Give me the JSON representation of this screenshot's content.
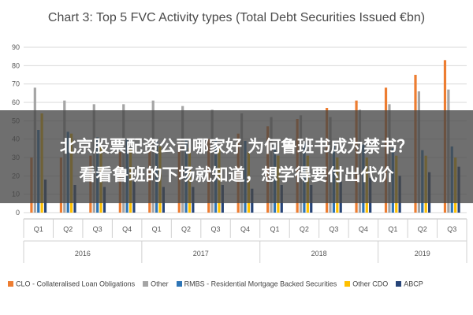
{
  "chart_data": {
    "type": "bar",
    "title": "Chart 3: Top 5 FVC Activity types (Total Debt Securities Issued €bn)",
    "ylim": [
      0,
      90
    ],
    "yticks": [
      0,
      10,
      20,
      30,
      40,
      50,
      60,
      70,
      80,
      90
    ],
    "grid": true,
    "legend_position": "bottom",
    "categories": [
      "Q1",
      "Q2",
      "Q3",
      "Q4",
      "Q1",
      "Q2",
      "Q3",
      "Q4",
      "Q1",
      "Q2",
      "Q3",
      "Q4",
      "Q1",
      "Q2",
      "Q3"
    ],
    "years": [
      {
        "label": "2016",
        "start": 0,
        "end": 3
      },
      {
        "label": "2017",
        "start": 4,
        "end": 7
      },
      {
        "label": "2018",
        "start": 8,
        "end": 11
      },
      {
        "label": "2019",
        "start": 12,
        "end": 14
      }
    ],
    "series": [
      {
        "name": "CLO - Collateralised Loan Obligations",
        "color": "#ed7d31",
        "values": [
          30,
          30,
          31,
          33,
          34,
          37,
          40,
          43,
          47,
          51,
          57,
          61,
          68,
          75,
          83
        ]
      },
      {
        "name": "Other",
        "color": "#a5a5a5",
        "values": [
          68,
          61,
          59,
          59,
          61,
          58,
          56,
          54,
          52,
          53,
          52,
          56,
          59,
          66,
          67
        ]
      },
      {
        "name": "RMBS - Residential Mortgage Backed Securities",
        "color": "#2e75b6",
        "values": [
          45,
          44,
          41,
          40,
          40,
          40,
          40,
          39,
          37,
          38,
          38,
          37,
          35,
          34,
          36
        ]
      },
      {
        "name": "Other CDO",
        "color": "#ffc000",
        "values": [
          54,
          43,
          36,
          35,
          36,
          35,
          35,
          33,
          31,
          31,
          30,
          30,
          31,
          31,
          30
        ]
      },
      {
        "name": "ABCP",
        "color": "#264478",
        "values": [
          18,
          15,
          14,
          17,
          14,
          14,
          15,
          13,
          15,
          15,
          17,
          19,
          20,
          22,
          25
        ]
      }
    ]
  },
  "overlay": {
    "line1": "北京股票配资公司哪家好 为何鲁班书成为禁书？",
    "line2": "看看鲁班的下场就知道，想学得要付出代价"
  }
}
